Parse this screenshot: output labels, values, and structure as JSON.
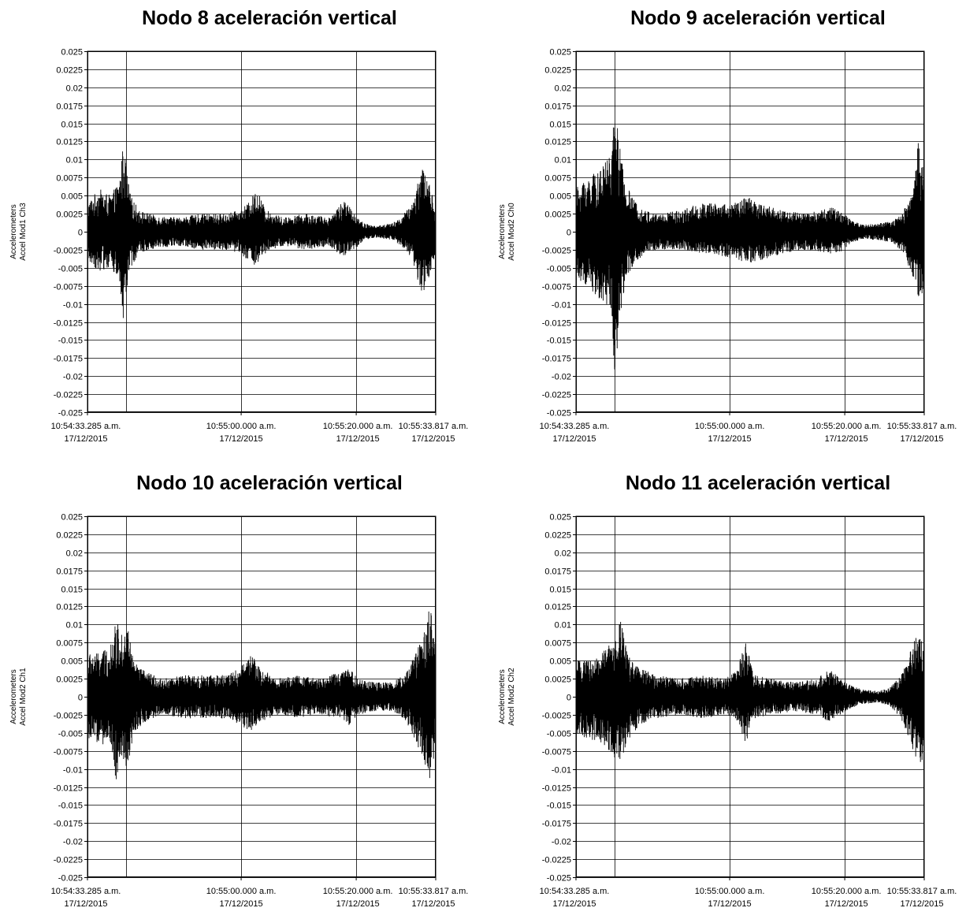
{
  "chart_data": [
    {
      "type": "line",
      "title": "Nodo 8 aceleración vertical",
      "ylabel_line1": "Accelerometers",
      "ylabel_line2": "Accel Mod1 Ch3",
      "ylim": [
        -0.025,
        0.025
      ],
      "y_ticks": [
        "0.025",
        "0.0225",
        "0.02",
        "0.0175",
        "0.015",
        "0.0125",
        "0.01",
        "0.0075",
        "0.005",
        "0.0025",
        "0",
        "-0.0025",
        "-0.005",
        "-0.0075",
        "-0.01",
        "-0.0125",
        "-0.015",
        "-0.0175",
        "-0.02",
        "-0.0225",
        "-0.025"
      ],
      "x_ticks": [
        {
          "time": "10:54:33.285 a.m.",
          "date": "17/12/2015"
        },
        {
          "time": "10:55:00.000 a.m.",
          "date": "17/12/2015"
        },
        {
          "time": "10:55:20.000 a.m.",
          "date": "17/12/2015"
        },
        {
          "time": "10:55:33.817 a.m.",
          "date": "17/12/2015"
        }
      ],
      "xlim_seconds": [
        0,
        60.532
      ],
      "grid": true,
      "envelope": {
        "t": [
          0,
          2,
          4,
          5.5,
          6.3,
          6.7,
          7.5,
          9,
          12,
          16,
          20,
          24,
          26.5,
          28,
          29.5,
          31,
          34,
          38,
          42,
          44.5,
          46,
          48,
          50,
          53,
          54.5,
          56.5,
          58,
          59,
          60,
          60.53
        ],
        "max": [
          0.004,
          0.006,
          0.005,
          0.007,
          0.0128,
          0.009,
          0.005,
          0.003,
          0.0022,
          0.002,
          0.0025,
          0.0025,
          0.003,
          0.004,
          0.006,
          0.003,
          0.002,
          0.0025,
          0.002,
          0.0045,
          0.003,
          0.0012,
          0.0008,
          0.0012,
          0.002,
          0.004,
          0.0095,
          0.008,
          0.005,
          0.003
        ],
        "min": [
          -0.004,
          -0.0055,
          -0.005,
          -0.007,
          -0.0135,
          -0.009,
          -0.005,
          -0.003,
          -0.0022,
          -0.002,
          -0.0025,
          -0.0025,
          -0.003,
          -0.004,
          -0.005,
          -0.003,
          -0.002,
          -0.0025,
          -0.002,
          -0.0035,
          -0.003,
          -0.0012,
          -0.0008,
          -0.0012,
          -0.002,
          -0.004,
          -0.0085,
          -0.008,
          -0.005,
          -0.003
        ]
      }
    },
    {
      "type": "line",
      "title": "Nodo 9 aceleración vertical",
      "ylabel_line1": "Accelerometers",
      "ylabel_line2": "Accel Mod2 Ch0",
      "ylim": [
        -0.025,
        0.025
      ],
      "y_ticks": [
        "0.025",
        "0.0225",
        "0.02",
        "0.0175",
        "0.015",
        "0.0125",
        "0.01",
        "0.0075",
        "0.005",
        "0.0025",
        "0",
        "-0.0025",
        "-0.005",
        "-0.0075",
        "-0.01",
        "-0.0125",
        "-0.015",
        "-0.0175",
        "-0.02",
        "-0.0225",
        "-0.025"
      ],
      "x_ticks": [
        {
          "time": "10:54:33.285 a.m.",
          "date": "17/12/2015"
        },
        {
          "time": "10:55:00.000 a.m.",
          "date": "17/12/2015"
        },
        {
          "time": "10:55:20.000 a.m.",
          "date": "17/12/2015"
        },
        {
          "time": "10:55:33.817 a.m.",
          "date": "17/12/2015"
        }
      ],
      "xlim_seconds": [
        0,
        60.532
      ],
      "grid": true,
      "envelope": {
        "t": [
          0,
          1.5,
          3,
          4.5,
          5.3,
          6,
          6.8,
          7.6,
          8.5,
          10,
          12,
          14,
          18,
          22,
          26,
          28,
          30,
          32,
          36,
          40,
          44,
          46,
          48,
          50,
          53,
          55,
          57,
          58.5,
          59.5,
          60.53
        ],
        "max": [
          0.006,
          0.0075,
          0.008,
          0.0085,
          0.011,
          0.01,
          0.018,
          0.012,
          0.007,
          0.0045,
          0.003,
          0.0025,
          0.003,
          0.004,
          0.004,
          0.004,
          0.005,
          0.004,
          0.003,
          0.0025,
          0.0035,
          0.003,
          0.0015,
          0.001,
          0.0012,
          0.0015,
          0.003,
          0.006,
          0.0128,
          0.008
        ],
        "min": [
          -0.006,
          -0.0075,
          -0.009,
          -0.0095,
          -0.01,
          -0.0115,
          -0.021,
          -0.012,
          -0.0075,
          -0.0045,
          -0.003,
          -0.0025,
          -0.0025,
          -0.003,
          -0.0035,
          -0.004,
          -0.0045,
          -0.004,
          -0.003,
          -0.0025,
          -0.003,
          -0.003,
          -0.0015,
          -0.001,
          -0.0012,
          -0.0015,
          -0.003,
          -0.0065,
          -0.0095,
          -0.008
        ]
      }
    },
    {
      "type": "line",
      "title": "Nodo 10 aceleración vertical",
      "ylabel_line1": "Accelerometers",
      "ylabel_line2": "Accel Mod2 Ch1",
      "ylim": [
        -0.025,
        0.025
      ],
      "y_ticks": [
        "0.025",
        "0.0225",
        "0.02",
        "0.0175",
        "0.015",
        "0.0125",
        "0.01",
        "0.0075",
        "0.005",
        "0.0025",
        "0",
        "-0.0025",
        "-0.005",
        "-0.0075",
        "-0.01",
        "-0.0125",
        "-0.015",
        "-0.0175",
        "-0.02",
        "-0.0225",
        "-0.025"
      ],
      "x_ticks": [
        {
          "time": "10:54:33.285 a.m.",
          "date": "17/12/2015"
        },
        {
          "time": "10:55:00.000 a.m.",
          "date": "17/12/2015"
        },
        {
          "time": "10:55:20.000 a.m.",
          "date": "17/12/2015"
        },
        {
          "time": "10:55:33.817 a.m.",
          "date": "17/12/2015"
        }
      ],
      "xlim_seconds": [
        0,
        60.532
      ],
      "grid": true,
      "envelope": {
        "t": [
          0,
          2,
          4,
          5,
          6,
          7,
          8,
          10,
          13,
          17,
          20,
          24,
          26.5,
          28.5,
          30,
          33,
          36,
          40,
          44,
          45.5,
          47,
          50,
          53,
          55,
          57,
          58.5,
          59.5,
          60.53
        ],
        "max": [
          0.006,
          0.006,
          0.007,
          0.0105,
          0.0095,
          0.01,
          0.005,
          0.0035,
          0.0025,
          0.003,
          0.003,
          0.003,
          0.004,
          0.006,
          0.004,
          0.0025,
          0.003,
          0.0025,
          0.0035,
          0.004,
          0.0025,
          0.002,
          0.002,
          0.003,
          0.006,
          0.009,
          0.013,
          0.007
        ],
        "min": [
          -0.006,
          -0.0065,
          -0.007,
          -0.012,
          -0.008,
          -0.0105,
          -0.005,
          -0.0035,
          -0.0025,
          -0.003,
          -0.003,
          -0.003,
          -0.004,
          -0.005,
          -0.0035,
          -0.0025,
          -0.003,
          -0.0025,
          -0.003,
          -0.004,
          -0.0025,
          -0.002,
          -0.002,
          -0.003,
          -0.006,
          -0.009,
          -0.0115,
          -0.007
        ]
      }
    },
    {
      "type": "line",
      "title": "Nodo 11 aceleración vertical",
      "ylabel_line1": "Accelerometers",
      "ylabel_line2": "Accel Mod2 Ch2",
      "ylim": [
        -0.025,
        0.025
      ],
      "y_ticks": [
        "0.025",
        "0.0225",
        "0.02",
        "0.0175",
        "0.015",
        "0.0125",
        "0.01",
        "0.0075",
        "0.005",
        "0.0025",
        "0",
        "-0.0025",
        "-0.005",
        "-0.0075",
        "-0.01",
        "-0.0125",
        "-0.015",
        "-0.0175",
        "-0.02",
        "-0.0225",
        "-0.025"
      ],
      "x_ticks": [
        {
          "time": "10:54:33.285 a.m.",
          "date": "17/12/2015"
        },
        {
          "time": "10:55:00.000 a.m.",
          "date": "17/12/2015"
        },
        {
          "time": "10:55:20.000 a.m.",
          "date": "17/12/2015"
        },
        {
          "time": "10:55:33.817 a.m.",
          "date": "17/12/2015"
        }
      ],
      "xlim_seconds": [
        0,
        60.532
      ],
      "grid": true,
      "envelope": {
        "t": [
          0,
          2,
          4,
          5.5,
          7,
          7.8,
          9,
          11,
          14,
          18,
          22,
          26,
          28,
          29.5,
          31,
          34,
          38,
          42,
          44,
          46,
          48,
          50,
          52.5,
          54.5,
          56.5,
          58,
          59,
          60,
          60.53
        ],
        "max": [
          0.005,
          0.005,
          0.0055,
          0.007,
          0.008,
          0.011,
          0.006,
          0.004,
          0.003,
          0.0025,
          0.003,
          0.0025,
          0.004,
          0.0075,
          0.003,
          0.0025,
          0.002,
          0.0025,
          0.004,
          0.0025,
          0.0015,
          0.001,
          0.0008,
          0.0012,
          0.003,
          0.006,
          0.0085,
          0.0085,
          0.006
        ],
        "min": [
          -0.005,
          -0.006,
          -0.006,
          -0.008,
          -0.0085,
          -0.0095,
          -0.006,
          -0.004,
          -0.003,
          -0.0025,
          -0.003,
          -0.0025,
          -0.0035,
          -0.0065,
          -0.003,
          -0.0025,
          -0.002,
          -0.0025,
          -0.0035,
          -0.0025,
          -0.0015,
          -0.001,
          -0.0008,
          -0.0012,
          -0.003,
          -0.006,
          -0.0085,
          -0.01,
          -0.006
        ]
      }
    }
  ]
}
